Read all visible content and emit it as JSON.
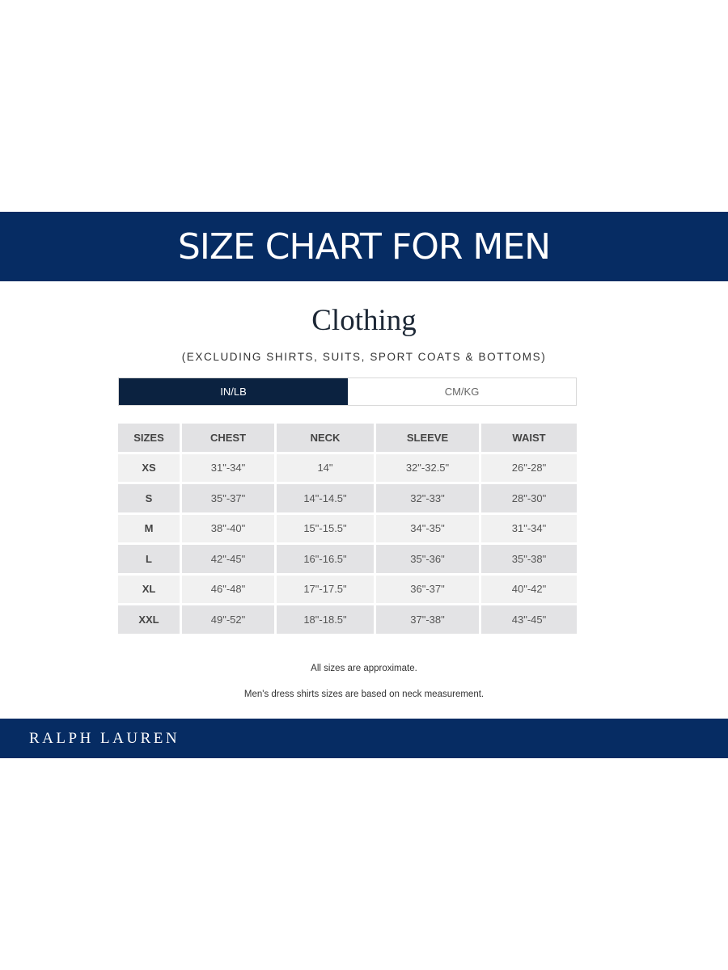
{
  "banner": {
    "title": "SIZE CHART FOR MEN"
  },
  "section": {
    "title": "Clothing",
    "subtitle": "(EXCLUDING SHIRTS, SUITS, SPORT COATS & BOTTOMS)"
  },
  "units": {
    "options": [
      "IN/LB",
      "CM/KG"
    ],
    "selected": "IN/LB"
  },
  "table": {
    "headers": [
      "SIZES",
      "CHEST",
      "NECK",
      "SLEEVE",
      "WAIST"
    ],
    "rows": [
      [
        "XS",
        "31\"-34\"",
        "14\"",
        "32\"-32.5\"",
        "26\"-28\""
      ],
      [
        "S",
        "35\"-37\"",
        "14\"-14.5\"",
        "32\"-33\"",
        "28\"-30\""
      ],
      [
        "M",
        "38\"-40\"",
        "15\"-15.5\"",
        "34\"-35\"",
        "31\"-34\""
      ],
      [
        "L",
        "42\"-45\"",
        "16\"-16.5\"",
        "35\"-36\"",
        "35\"-38\""
      ],
      [
        "XL",
        "46\"-48\"",
        "17\"-17.5\"",
        "36\"-37\"",
        "40\"-42\""
      ],
      [
        "XXL",
        "49\"-52\"",
        "18\"-18.5\"",
        "37\"-38\"",
        "43\"-45\""
      ]
    ]
  },
  "notes": [
    "All sizes are approximate.",
    "Men's dress shirts sizes are based on neck measurement."
  ],
  "footer": {
    "brand": "RALPH LAUREN"
  },
  "colors": {
    "navy": "#062c63",
    "tab_active": "#0b2240"
  }
}
